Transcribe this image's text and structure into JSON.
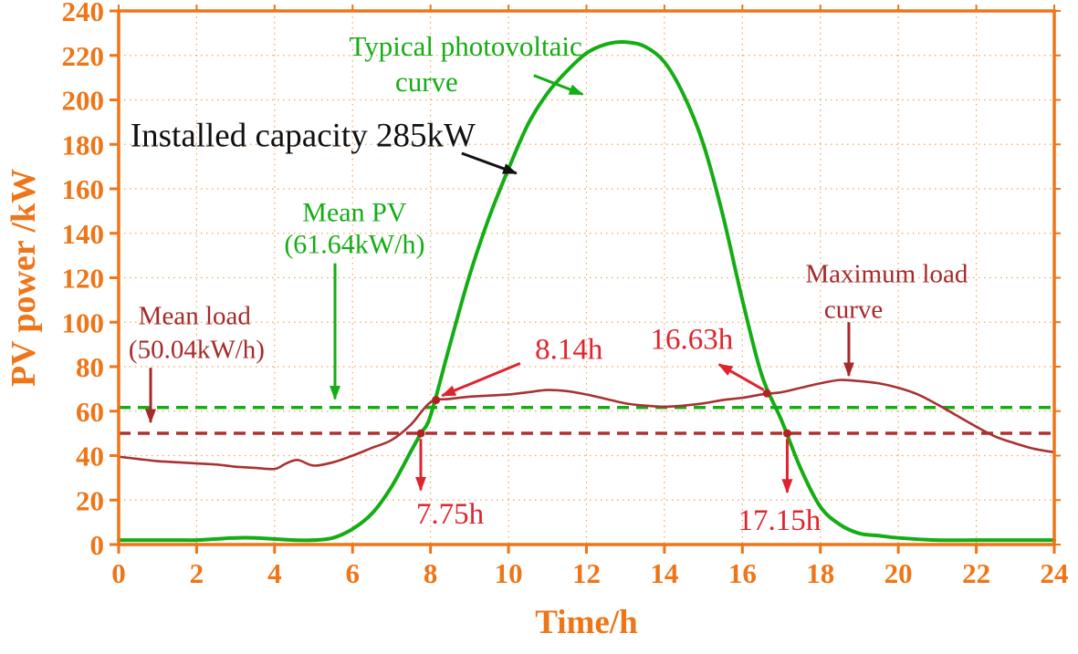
{
  "figure": {
    "background": "#ffffff"
  },
  "chart_data": {
    "type": "line",
    "title": "",
    "xlabel": "Time/h",
    "ylabel": "PV power /kW",
    "xlim": [
      0,
      24
    ],
    "ylim": [
      0,
      240
    ],
    "xticks": [
      0,
      2,
      4,
      6,
      8,
      10,
      12,
      14,
      16,
      18,
      20,
      22,
      24
    ],
    "yticks": [
      0,
      20,
      40,
      60,
      80,
      100,
      120,
      140,
      160,
      180,
      200,
      220,
      240
    ],
    "grid": "dotted",
    "axis_color": "#ee7518",
    "grid_color": "#f2a55c",
    "installed_capacity_kw": 285,
    "series": [
      {
        "id": "typical-pv",
        "name": "Typical photovoltaic curve",
        "color": "#14ad14",
        "width": 4,
        "x": [
          0,
          0.5,
          1,
          1.5,
          2,
          2.5,
          3,
          3.5,
          4,
          4.5,
          5,
          5.5,
          6,
          6.5,
          7,
          7.5,
          7.75,
          8,
          8.5,
          9,
          9.5,
          10,
          10.5,
          11,
          11.5,
          12,
          12.5,
          13,
          13.5,
          14,
          14.5,
          15,
          15.5,
          16,
          16.5,
          17,
          17.5,
          18,
          18.5,
          19,
          19.5,
          20,
          21,
          22,
          23,
          24
        ],
        "y": [
          2,
          2,
          2,
          2,
          2,
          2.5,
          3,
          3,
          2.5,
          2,
          2,
          3,
          7,
          14,
          26,
          42,
          50,
          58,
          90,
          121,
          147,
          169,
          189,
          203,
          213,
          221,
          225,
          226,
          224,
          217,
          202,
          180,
          148,
          110,
          76,
          56,
          34,
          17,
          9,
          5,
          4,
          3,
          2,
          2,
          2,
          2
        ]
      },
      {
        "id": "max-load",
        "name": "Maximum load curve",
        "color": "#a83232",
        "width": 2.6,
        "x": [
          0,
          0.5,
          1,
          1.5,
          2,
          2.5,
          3,
          3.5,
          4,
          4.3,
          4.6,
          5,
          5.5,
          6,
          6.5,
          7,
          7.5,
          8,
          8.5,
          9,
          9.5,
          10,
          10.5,
          11,
          11.5,
          12,
          12.5,
          13,
          13.5,
          14,
          14.5,
          15,
          15.5,
          16,
          16.5,
          17,
          17.5,
          18,
          18.5,
          19,
          19.5,
          20,
          20.5,
          21,
          21.5,
          22,
          22.5,
          23,
          23.5,
          24
        ],
        "y": [
          39.5,
          38.5,
          37.5,
          37,
          36.5,
          36,
          35,
          34.5,
          34,
          36.5,
          38,
          35.5,
          37,
          40,
          43.5,
          47,
          54,
          64,
          65.5,
          66.5,
          67,
          67.5,
          68.5,
          69.5,
          69,
          67.5,
          65.5,
          63.5,
          62.5,
          62,
          62.5,
          63.5,
          65,
          66,
          67.5,
          68.5,
          70.5,
          72.5,
          74,
          73.5,
          72.5,
          70.5,
          67.5,
          63,
          58,
          53,
          48.5,
          45.5,
          43,
          41.5
        ]
      }
    ],
    "reference_lines": [
      {
        "id": "mean-pv",
        "label": "Mean PV (61.64kW/h)",
        "value": 61.64,
        "color": "#14ad14",
        "width": 3.5,
        "dash": "13 8"
      },
      {
        "id": "mean-load",
        "label": "Mean load (50.04kW/h)",
        "value": 50.04,
        "color": "#b03030",
        "width": 3.5,
        "dash": "13 8"
      }
    ],
    "crossing_markers": [
      {
        "id": "cross-8-14",
        "x": 8.14,
        "y": 65
      },
      {
        "id": "cross-7-75",
        "x": 7.75,
        "y": 50
      },
      {
        "id": "cross-16-63",
        "x": 16.63,
        "y": 68
      },
      {
        "id": "cross-17-15",
        "x": 17.15,
        "y": 50
      }
    ],
    "annotations": {
      "texts": [
        {
          "id": "typical-pv-line1",
          "text": "Typical photovoltaic",
          "x": 8.9,
          "y": 220,
          "color": "#14ad14",
          "size": 31,
          "anchor": "middle",
          "weight": 400
        },
        {
          "id": "typical-pv-line2",
          "text": "curve",
          "x": 7.9,
          "y": 204,
          "color": "#14ad14",
          "size": 31,
          "anchor": "middle",
          "weight": 400
        },
        {
          "id": "installed-capacity",
          "text": "Installed capacity 285kW",
          "x": 0.3,
          "y": 179,
          "color": "#111111",
          "size": 37,
          "anchor": "start",
          "weight": 400
        },
        {
          "id": "mean-pv-line1",
          "text": "Mean PV",
          "x": 6.05,
          "y": 145.5,
          "color": "#14ad14",
          "size": 30,
          "anchor": "middle",
          "weight": 400
        },
        {
          "id": "mean-pv-line2",
          "text": "(61.64kW/h)",
          "x": 6.05,
          "y": 131,
          "color": "#14ad14",
          "size": 30,
          "anchor": "middle",
          "weight": 400
        },
        {
          "id": "mean-load-line1",
          "text": "Mean load",
          "x": 1.95,
          "y": 99,
          "color": "#a52a2a",
          "size": 29,
          "anchor": "middle",
          "weight": 400
        },
        {
          "id": "mean-load-line2",
          "text": "(50.04kW/h)",
          "x": 2.0,
          "y": 84,
          "color": "#a52a2a",
          "size": 29,
          "anchor": "middle",
          "weight": 400
        },
        {
          "id": "max-load-line1",
          "text": "Maximum load",
          "x": 19.7,
          "y": 118,
          "color": "#a52a2a",
          "size": 29,
          "anchor": "middle",
          "weight": 400
        },
        {
          "id": "max-load-line2",
          "text": "curve",
          "x": 18.85,
          "y": 102,
          "color": "#a52a2a",
          "size": 29,
          "anchor": "middle",
          "weight": 400
        },
        {
          "id": "time-8-14",
          "text": "8.14h",
          "x": 11.55,
          "y": 83.5,
          "color": "#e0242e",
          "size": 33,
          "anchor": "middle",
          "weight": 400
        },
        {
          "id": "time-16-63",
          "text": "16.63h",
          "x": 14.7,
          "y": 88,
          "color": "#e0242e",
          "size": 33,
          "anchor": "middle",
          "weight": 400
        },
        {
          "id": "time-7-75",
          "text": "7.75h",
          "x": 8.5,
          "y": 9.5,
          "color": "#e0242e",
          "size": 33,
          "anchor": "middle",
          "weight": 400
        },
        {
          "id": "time-17-15",
          "text": "17.15h",
          "x": 16.95,
          "y": 6.5,
          "color": "#e0242e",
          "size": 33,
          "anchor": "middle",
          "weight": 400
        }
      ],
      "arrows": [
        {
          "id": "typical-pv-arrow",
          "from": [
            10.65,
            211
          ],
          "to": [
            11.9,
            202.5
          ],
          "color": "#14ad14",
          "width": 3
        },
        {
          "id": "installed-arrow",
          "from": [
            8.8,
            176
          ],
          "to": [
            10.2,
            167
          ],
          "color": "#111111",
          "width": 3
        },
        {
          "id": "mean-pv-arrow",
          "from": [
            5.55,
            126.5
          ],
          "to": [
            5.55,
            65.5
          ],
          "color": "#14ad14",
          "width": 3
        },
        {
          "id": "mean-load-arrow",
          "from": [
            0.82,
            79.5
          ],
          "to": [
            0.82,
            55
          ],
          "color": "#a52a2a",
          "width": 3
        },
        {
          "id": "max-load-arrow",
          "from": [
            18.73,
            100
          ],
          "to": [
            18.73,
            76
          ],
          "color": "#a52a2a",
          "width": 3
        },
        {
          "id": "time-8-14-arrow",
          "from": [
            10.3,
            81.5
          ],
          "to": [
            8.3,
            67
          ],
          "color": "#e0242e",
          "width": 3
        },
        {
          "id": "time-16-63-arrow",
          "from": [
            16.55,
            69.5
          ],
          "to": [
            15.4,
            81
          ],
          "color": "#e0242e",
          "width": 3
        },
        {
          "id": "time-7-75-arrow",
          "from": [
            7.75,
            47.5
          ],
          "to": [
            7.75,
            24.5
          ],
          "color": "#e0242e",
          "width": 3
        },
        {
          "id": "time-17-15-arrow",
          "from": [
            17.15,
            47.5
          ],
          "to": [
            17.15,
            23.5
          ],
          "color": "#e0242e",
          "width": 3
        }
      ]
    },
    "marker_color": "#b22222"
  }
}
